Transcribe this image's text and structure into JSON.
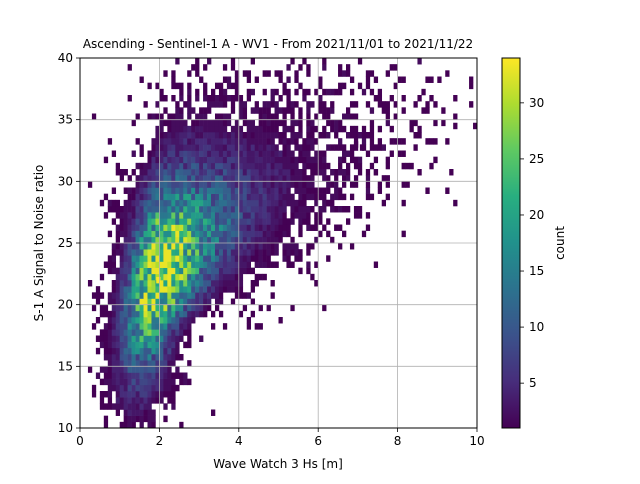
{
  "chart_data": {
    "type": "heatmap",
    "title": "Ascending - Sentinel-1 A - WV1 - From 2021/11/01 to 2021/11/22",
    "xlabel": "Wave Watch 3 Hs [m]",
    "ylabel": "S-1 A Signal to Noise ratio",
    "xlim": [
      0,
      10
    ],
    "ylim": [
      10,
      40
    ],
    "x_ticks": [
      "0",
      "2",
      "4",
      "6",
      "8",
      "10"
    ],
    "y_ticks": [
      "10",
      "15",
      "20",
      "25",
      "30",
      "35",
      "40"
    ],
    "grid": true,
    "colormap": "viridis",
    "colorbar": {
      "label": "count",
      "range": [
        1,
        34
      ],
      "ticks": [
        "5",
        "10",
        "15",
        "20",
        "25",
        "30"
      ]
    },
    "density_peak": {
      "x": 1.97,
      "y": 22.0,
      "count": 34
    },
    "bin_width_x": 0.1,
    "bin_width_y": 0.5,
    "outlier_bins": [
      {
        "x": 8.95,
        "y": 33.25,
        "count": 1
      },
      {
        "x": 9.45,
        "y": 34.5,
        "count": 1
      },
      {
        "x": 9.95,
        "y": 34.5,
        "count": 1
      },
      {
        "x": 9.45,
        "y": 28.25,
        "count": 1
      },
      {
        "x": 7.55,
        "y": 33.25,
        "count": 1
      },
      {
        "x": 7.45,
        "y": 31.75,
        "count": 1
      },
      {
        "x": 7.45,
        "y": 30.75,
        "count": 1
      },
      {
        "x": 6.75,
        "y": 27.75,
        "count": 1
      },
      {
        "x": 6.25,
        "y": 28.25,
        "count": 1
      },
      {
        "x": 4.15,
        "y": 38.75,
        "count": 1
      },
      {
        "x": 3.35,
        "y": 11.25,
        "count": 1
      },
      {
        "x": 6.95,
        "y": 33.0,
        "count": 1
      },
      {
        "x": 7.1,
        "y": 32.75,
        "count": 1
      },
      {
        "x": 2.55,
        "y": 10.25,
        "count": 1
      }
    ]
  }
}
